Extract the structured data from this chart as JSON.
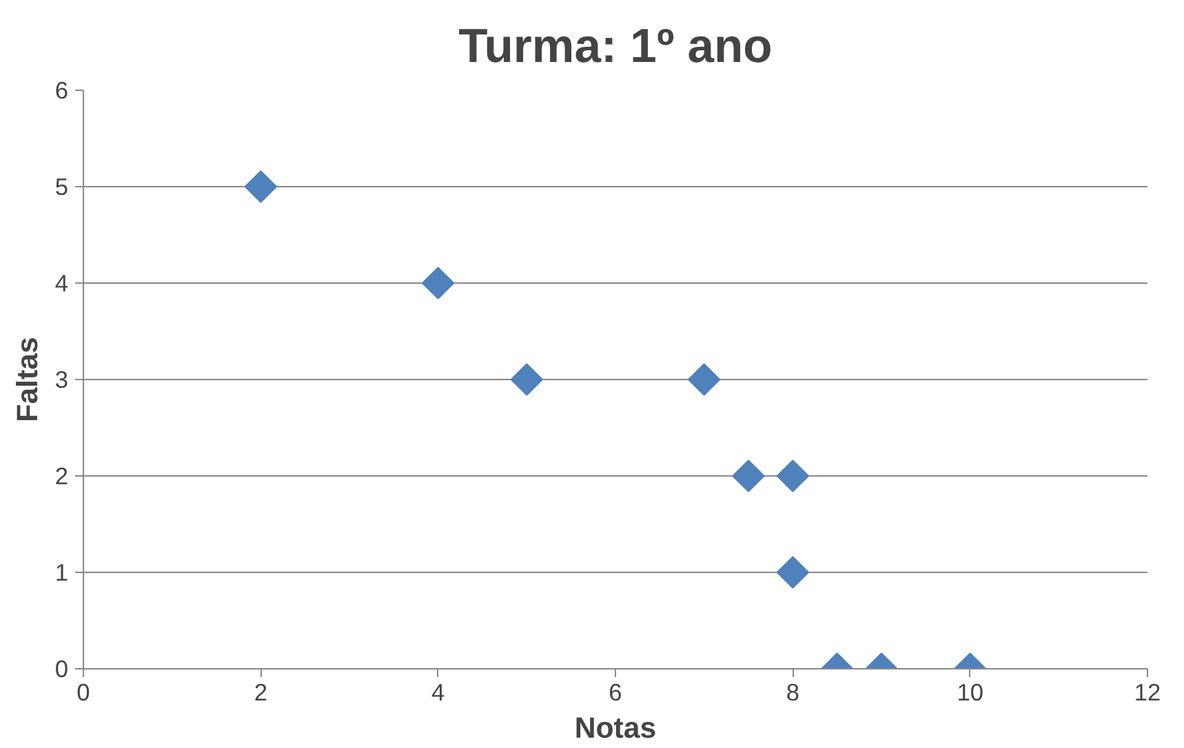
{
  "chart_data": {
    "type": "scatter",
    "title": "Turma: 1º ano",
    "xlabel": "Notas",
    "ylabel": "Faltas",
    "x": [
      2,
      4,
      5,
      7,
      7.5,
      8,
      8,
      8.5,
      9,
      10
    ],
    "series": [
      {
        "color": "#4f81bd",
        "values": [
          5,
          4,
          3,
          3,
          2,
          2,
          1,
          0,
          0,
          0
        ]
      }
    ],
    "xlim": [
      0,
      12
    ],
    "xticks": [
      0,
      2,
      4,
      6,
      8,
      10,
      12
    ],
    "ylim": [
      0,
      6
    ],
    "yticks": [
      0,
      1,
      2,
      3,
      4,
      5,
      6
    ],
    "grid": "y",
    "marker": "diamond"
  }
}
